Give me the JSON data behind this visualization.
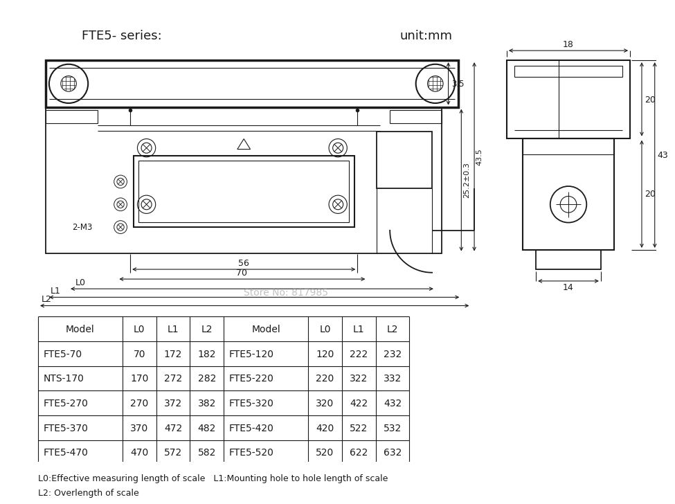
{
  "title_left": "FTE5- series:",
  "title_right": "unit:mm",
  "bg_color": "#ffffff",
  "table_headers": [
    "Model",
    "L0",
    "L1",
    "L2",
    "Model",
    "L0",
    "L1",
    "L2"
  ],
  "table_rows": [
    [
      "FTE5-70",
      "70",
      "172",
      "182",
      "FTE5-120",
      "120",
      "222",
      "232"
    ],
    [
      "NTS-170",
      "170",
      "272",
      "282",
      "FTE5-220",
      "220",
      "322",
      "332"
    ],
    [
      "FTE5-270",
      "270",
      "372",
      "382",
      "FTE5-320",
      "320",
      "422",
      "432"
    ],
    [
      "FTE5-370",
      "370",
      "472",
      "482",
      "FTE5-420",
      "420",
      "522",
      "532"
    ],
    [
      "FTE5-470",
      "470",
      "572",
      "582",
      "FTE5-520",
      "520",
      "622",
      "632"
    ]
  ],
  "footnote1": "L0:Effective measuring length of scale   L1:Mounting hole to hole length of scale",
  "footnote2": "L2: Overlength of scale",
  "watermark": "Store No: 817985",
  "dim_35": "3.5",
  "dim_252": "25.2±0.3",
  "dim_435": "43.5",
  "dim_18": "18",
  "dim_20t": "20",
  "dim_43": "43",
  "dim_20b": "20",
  "dim_14": "14",
  "dim_56": "56",
  "dim_70": "70",
  "dim_L0": "L0",
  "dim_L1": "L1",
  "dim_L2": "L2",
  "label_2M3": "2-M3"
}
